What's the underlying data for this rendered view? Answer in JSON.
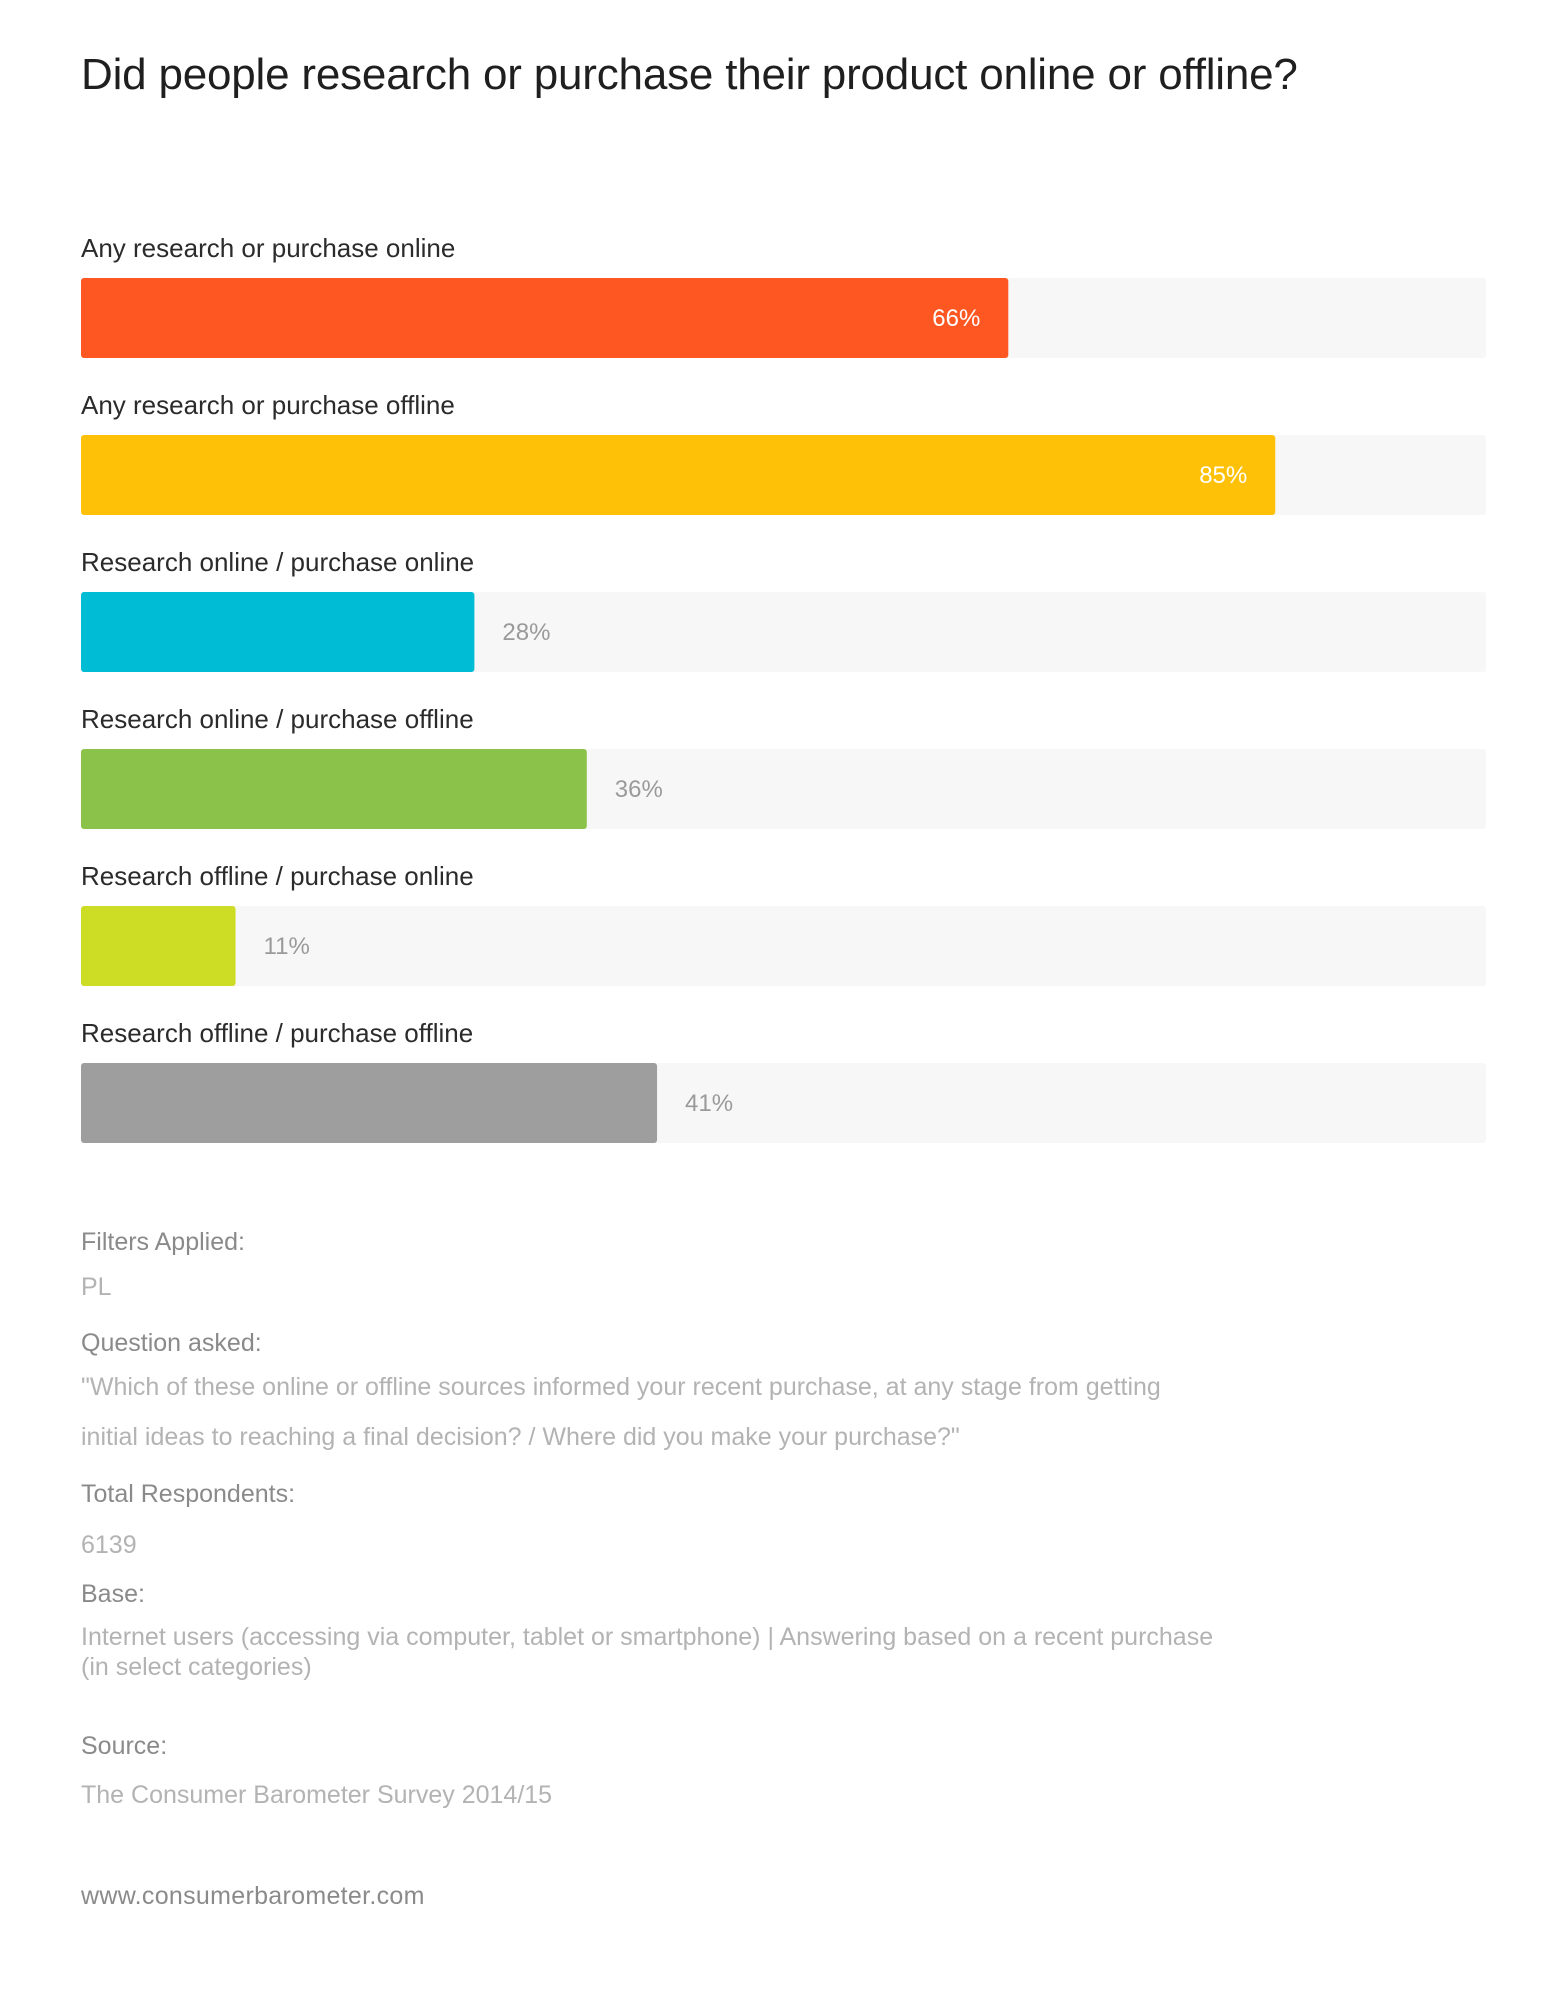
{
  "title": "Did people research or purchase their product online or offline?",
  "chart_data": {
    "type": "bar",
    "orientation": "horizontal",
    "title": "Did people research or purchase their product online or offline?",
    "xlim": [
      0,
      100
    ],
    "categories": [
      "Any research or purchase online",
      "Any research or purchase offline",
      "Research online / purchase online",
      "Research online / purchase offline",
      "Research offline / purchase online",
      "Research offline / purchase offline"
    ],
    "values": [
      66,
      85,
      28,
      36,
      11,
      41
    ],
    "value_labels": [
      "66%",
      "85%",
      "28%",
      "36%",
      "11%",
      "41%"
    ],
    "colors": [
      "#ff5722",
      "#ffc107",
      "#00bcd4",
      "#8bc34a",
      "#cddc25",
      "#9e9e9e"
    ],
    "track_color": "#f7f7f7"
  },
  "meta": {
    "filters_label": "Filters Applied:",
    "filters_value": "PL",
    "question_label": "Question asked:",
    "question_line1": "\"Which of these online or offline sources informed your recent purchase, at any stage from getting",
    "question_line2": "initial ideas to reaching a final decision? / Where did you make your purchase?\"",
    "respondents_label": "Total Respondents:",
    "respondents_value": "6139",
    "base_label": "Base:",
    "base_line1": "Internet users (accessing via computer, tablet or smartphone) | Answering based on a recent purchase",
    "base_line2": "(in select categories)",
    "source_label": "Source:",
    "source_value": "The Consumer Barometer Survey 2014/15"
  },
  "footer": "www.consumerbarometer.com"
}
